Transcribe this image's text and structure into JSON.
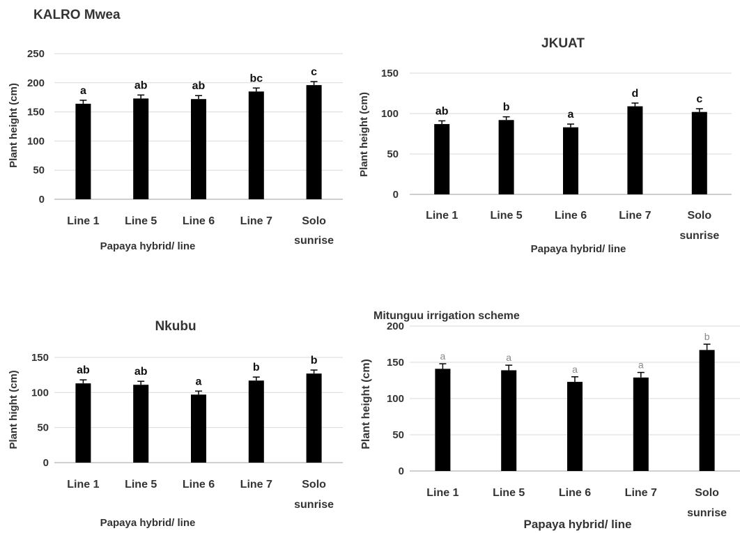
{
  "chart_data": [
    {
      "type": "bar",
      "title": "KALRO Mwea",
      "xlabel": "Papaya hybrid/ line",
      "ylabel": "Plant height (cm)",
      "ylim": [
        0,
        250
      ],
      "yticks": [
        0,
        50,
        100,
        150,
        200,
        250
      ],
      "yticks_display": [
        "0",
        "50",
        "100",
        "150",
        "200",
        "250"
      ],
      "categories": [
        "Line 1",
        "Line 5",
        "Line 6",
        "Line 7",
        "Solo sunrise"
      ],
      "values": [
        164,
        173,
        172,
        185,
        196
      ],
      "errors": [
        6,
        6,
        6,
        6,
        6
      ],
      "letters": [
        "a",
        "ab",
        "ab",
        "bc",
        "c"
      ],
      "grid": true,
      "bar_color": "#000000"
    },
    {
      "type": "bar",
      "title": "JKUAT",
      "xlabel": "Papaya hybrid/ line",
      "ylabel": "Plant height (cm)",
      "ylim": [
        0,
        150
      ],
      "yticks": [
        0,
        50,
        100,
        150
      ],
      "yticks_display": [
        "0",
        "50",
        "100",
        "150"
      ],
      "categories": [
        "Line 1",
        "Line 5",
        "Line 6",
        "Line 7",
        "Solo sunrise"
      ],
      "values": [
        87,
        92,
        83,
        109,
        102
      ],
      "errors": [
        4,
        4,
        4,
        4,
        4
      ],
      "letters": [
        "ab",
        "b",
        "a",
        "d",
        "c"
      ],
      "grid": true,
      "bar_color": "#000000"
    },
    {
      "type": "bar",
      "title": "Nkubu",
      "xlabel": "Papaya hybrid/ line",
      "ylabel": "Plant hight (cm)",
      "ylim": [
        0,
        150
      ],
      "yticks": [
        0,
        50,
        100,
        150
      ],
      "yticks_display": [
        "0",
        "50",
        "100",
        "150"
      ],
      "categories": [
        "Line 1",
        "Line 5",
        "Line 6",
        "Line 7",
        "Solo sunrise"
      ],
      "values": [
        113,
        111,
        97,
        117,
        127
      ],
      "errors": [
        5,
        5,
        5,
        5,
        5
      ],
      "letters": [
        "ab",
        "ab",
        "a",
        "b",
        "b"
      ],
      "grid": true,
      "bar_color": "#000000"
    },
    {
      "type": "bar",
      "title": "Mitunguu irrigation scheme",
      "xlabel": "Papaya hybrid/ line",
      "ylabel": "Plant height (cm)",
      "ylim": [
        0,
        200
      ],
      "yticks": [
        0,
        50,
        100,
        150,
        200
      ],
      "yticks_display": [
        "0",
        "50",
        "100",
        "150",
        "200"
      ],
      "categories": [
        "Line 1",
        "Line 5",
        "Line 6",
        "Line 7",
        "Solo sunrise"
      ],
      "values": [
        141,
        139,
        123,
        129,
        167
      ],
      "errors": [
        7,
        7,
        7,
        7,
        8
      ],
      "letters": [
        "a",
        "a",
        "a",
        "a",
        "b"
      ],
      "grid": true,
      "bar_color": "#000000"
    }
  ]
}
